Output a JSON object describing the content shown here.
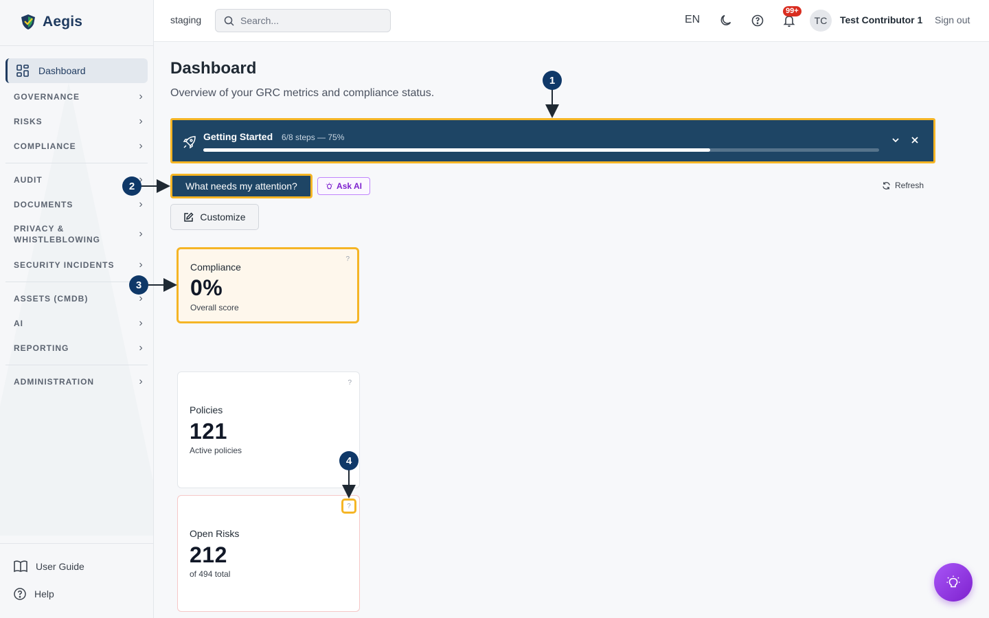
{
  "app": {
    "name": "Aegis",
    "environment": "staging"
  },
  "search": {
    "placeholder": "Search..."
  },
  "header": {
    "language": "EN",
    "notifications_badge": "99+",
    "user_initials": "TC",
    "user_name": "Test Contributor 1",
    "sign_out": "Sign out"
  },
  "sidebar": {
    "active": "Dashboard",
    "items": [
      "GOVERNANCE",
      "RISKS",
      "COMPLIANCE",
      "AUDIT",
      "DOCUMENTS",
      "PRIVACY & WHISTLEBLOWING",
      "SECURITY INCIDENTS",
      "ASSETS (CMDB)",
      "AI",
      "REPORTING",
      "ADMINISTRATION"
    ],
    "footer": {
      "user_guide": "User Guide",
      "help": "Help"
    }
  },
  "page": {
    "title": "Dashboard",
    "subtitle": "Overview of your GRC metrics and compliance status."
  },
  "getting_started": {
    "title": "Getting Started",
    "steps": "6/8 steps — 75%",
    "progress_percent": 75
  },
  "actions": {
    "attention": "What needs my attention?",
    "ask_ai": "Ask AI",
    "refresh": "Refresh",
    "customize": "Customize"
  },
  "cards": {
    "compliance": {
      "title": "Compliance",
      "value": "0%",
      "sub": "Overall score",
      "help": "?"
    },
    "policies": {
      "title": "Policies",
      "value": "121",
      "sub": "Active policies",
      "help": "?"
    },
    "risks": {
      "title": "Open Risks",
      "value": "212",
      "sub": "of 494 total",
      "help": "?"
    }
  },
  "markers": [
    "1",
    "2",
    "3",
    "4"
  ],
  "colors": {
    "brand_navy": "#1e4565",
    "highlight": "#f5b525",
    "marker": "#0f3868",
    "ai_purple": "#7e22ce",
    "badge_red": "#d92d20"
  }
}
